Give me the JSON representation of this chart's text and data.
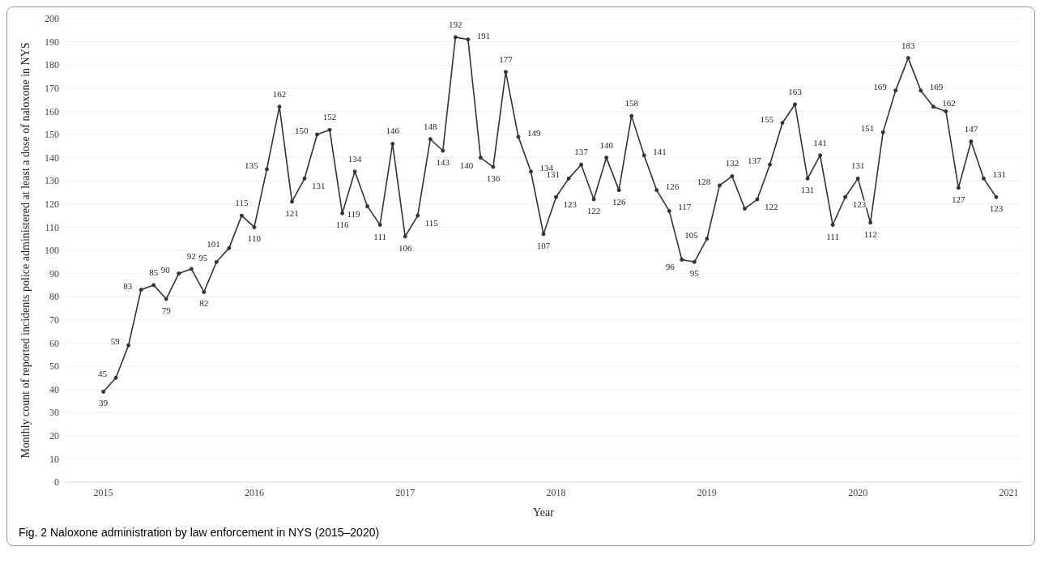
{
  "chart_data": {
    "type": "line",
    "xlabel": "Year",
    "ylabel": "Monthly count of reported incidents police administered at least a dose of naloxone in NYS",
    "annotations": [
      "Fig. 2  Naloxone administration by law enforcement in NYS (2015–2020)"
    ],
    "x": [
      "2015-01",
      "2015-02",
      "2015-03",
      "2015-04",
      "2015-05",
      "2015-06",
      "2015-07",
      "2015-08",
      "2015-09",
      "2015-10",
      "2015-11",
      "2015-12",
      "2016-01",
      "2016-02",
      "2016-03",
      "2016-04",
      "2016-05",
      "2016-06",
      "2016-07",
      "2016-08",
      "2016-09",
      "2016-10",
      "2016-11",
      "2016-12",
      "2017-01",
      "2017-02",
      "2017-03",
      "2017-04",
      "2017-05",
      "2017-06",
      "2017-07",
      "2017-08",
      "2017-09",
      "2017-10",
      "2017-11",
      "2017-12",
      "2018-01",
      "2018-02",
      "2018-03",
      "2018-04",
      "2018-05",
      "2018-06",
      "2018-07",
      "2018-08",
      "2018-09",
      "2018-10",
      "2018-11",
      "2018-12",
      "2019-01",
      "2019-02",
      "2019-03",
      "2019-04",
      "2019-05",
      "2019-06",
      "2019-07",
      "2019-08",
      "2019-09",
      "2019-10",
      "2019-11",
      "2019-12",
      "2020-01",
      "2020-02",
      "2020-03",
      "2020-04",
      "2020-05",
      "2020-06",
      "2020-07",
      "2020-08",
      "2020-09",
      "2020-10",
      "2020-11",
      "2020-12"
    ],
    "series": [
      {
        "color": "#333333",
        "values": [
          39,
          45,
          59,
          83,
          85,
          79,
          90,
          92,
          82,
          95,
          101,
          115,
          110,
          135,
          162,
          121,
          131,
          150,
          152,
          116,
          134,
          119,
          111,
          146,
          106,
          115,
          148,
          143,
          192,
          191,
          140,
          136,
          177,
          149,
          134,
          107,
          123,
          131,
          137,
          122,
          140,
          126,
          158,
          141,
          126,
          117,
          96,
          95,
          105,
          128,
          132,
          118,
          122,
          137,
          155,
          163,
          131,
          141,
          111,
          123,
          131,
          112,
          151,
          169,
          183,
          169,
          162,
          160,
          127,
          147,
          131,
          123
        ],
        "value_labels": [
          "39",
          "45",
          "59",
          "83",
          "85",
          "79",
          "90",
          "92",
          "82",
          "95",
          "101",
          "115",
          "110",
          "135",
          "162",
          "121",
          "131",
          "150",
          "152",
          "116",
          "134",
          "119",
          "111",
          "146",
          "106",
          "115",
          "148",
          "143",
          "192",
          "191",
          "140",
          "136",
          "177",
          "149",
          "134",
          "107",
          "123",
          "131",
          "137",
          "122",
          "140",
          "126",
          "158",
          "141",
          "126",
          "117",
          "96",
          "95",
          "105",
          "128",
          "132",
          null,
          "122",
          "137",
          "155",
          "163",
          "131",
          "141",
          "111",
          "123",
          "131",
          "112",
          "151",
          "169",
          "183",
          "169",
          "162",
          null,
          "127",
          "147",
          "131",
          "123"
        ]
      }
    ],
    "xlim": [
      "2014-10",
      "2021-02"
    ],
    "xticks": [
      {
        "value": "2015",
        "label": "2015"
      },
      {
        "value": "2016",
        "label": "2016"
      },
      {
        "value": "2017",
        "label": "2017"
      },
      {
        "value": "2018",
        "label": "2018"
      },
      {
        "value": "2019",
        "label": "2019"
      },
      {
        "value": "2020",
        "label": "2020"
      },
      {
        "value": "2021",
        "label": "2021"
      }
    ],
    "ylim": [
      0,
      200
    ],
    "yticks": [
      0,
      10,
      20,
      30,
      40,
      50,
      60,
      70,
      80,
      90,
      100,
      110,
      120,
      130,
      140,
      150,
      160,
      170,
      180,
      190,
      200
    ],
    "grid": "y",
    "marker": "circle",
    "line_style": "solid",
    "legend": false
  }
}
